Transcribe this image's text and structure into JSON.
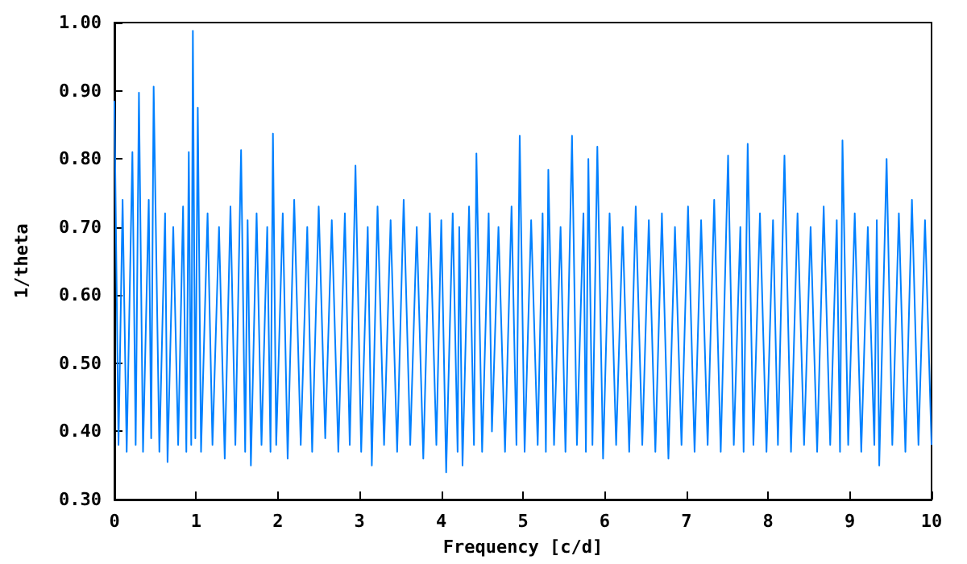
{
  "chart_data": {
    "type": "line",
    "xlabel": "Frequency [c/d]",
    "ylabel": "1/theta",
    "xlim": [
      0,
      10
    ],
    "xticks": [
      0,
      1,
      2,
      3,
      4,
      5,
      6,
      7,
      8,
      9,
      10
    ],
    "ylim": [
      0.3,
      1.0
    ],
    "yticks": [
      {
        "value": 0.3,
        "label": "0.30"
      },
      {
        "value": 0.4,
        "label": "0.40"
      },
      {
        "value": 0.5,
        "label": "0.50"
      },
      {
        "value": 0.6,
        "label": "0.60"
      },
      {
        "value": 0.7,
        "label": "0.70"
      },
      {
        "value": 0.8,
        "label": "0.80"
      },
      {
        "value": 0.9,
        "label": "0.90"
      },
      {
        "value": 1.0,
        "label": "1.00"
      }
    ],
    "grid": false,
    "marker": "none",
    "line_style": "solid",
    "series": [
      {
        "color": "#0080ff",
        "x": [
          0,
          0.05,
          0.1,
          0.15,
          0.22,
          0.26,
          0.3,
          0.35,
          0.42,
          0.45,
          0.48,
          0.55,
          0.62,
          0.65,
          0.72,
          0.78,
          0.84,
          0.88,
          0.91,
          0.94,
          0.96,
          0.99,
          1.02,
          1.06,
          1.14,
          1.2,
          1.28,
          1.35,
          1.42,
          1.48,
          1.55,
          1.6,
          1.63,
          1.67,
          1.74,
          1.8,
          1.87,
          1.91,
          1.94,
          1.98,
          2.06,
          2.12,
          2.2,
          2.28,
          2.36,
          2.42,
          2.5,
          2.58,
          2.66,
          2.74,
          2.82,
          2.88,
          2.95,
          3.02,
          3.1,
          3.15,
          3.22,
          3.3,
          3.38,
          3.46,
          3.54,
          3.62,
          3.7,
          3.78,
          3.86,
          3.94,
          4.0,
          4.06,
          4.14,
          4.2,
          4.22,
          4.26,
          4.34,
          4.4,
          4.43,
          4.5,
          4.58,
          4.62,
          4.7,
          4.78,
          4.86,
          4.92,
          4.96,
          5.02,
          5.1,
          5.18,
          5.24,
          5.28,
          5.31,
          5.38,
          5.46,
          5.52,
          5.6,
          5.66,
          5.74,
          5.77,
          5.8,
          5.85,
          5.91,
          5.98,
          6.06,
          6.14,
          6.22,
          6.3,
          6.38,
          6.46,
          6.54,
          6.62,
          6.7,
          6.78,
          6.86,
          6.94,
          7.02,
          7.1,
          7.18,
          7.26,
          7.34,
          7.42,
          7.51,
          7.58,
          7.66,
          7.7,
          7.75,
          7.82,
          7.9,
          7.98,
          8.06,
          8.12,
          8.2,
          8.28,
          8.36,
          8.44,
          8.52,
          8.6,
          8.68,
          8.76,
          8.84,
          8.88,
          8.91,
          8.98,
          9.06,
          9.14,
          9.22,
          9.3,
          9.33,
          9.36,
          9.45,
          9.52,
          9.6,
          9.68,
          9.76,
          9.84,
          9.92,
          10
        ],
        "values": [
          0.885,
          0.38,
          0.74,
          0.37,
          0.81,
          0.38,
          0.897,
          0.37,
          0.74,
          0.39,
          0.906,
          0.37,
          0.72,
          0.355,
          0.7,
          0.38,
          0.73,
          0.37,
          0.81,
          0.38,
          0.988,
          0.39,
          0.875,
          0.37,
          0.72,
          0.38,
          0.7,
          0.36,
          0.73,
          0.38,
          0.813,
          0.37,
          0.71,
          0.35,
          0.72,
          0.38,
          0.7,
          0.37,
          0.837,
          0.38,
          0.72,
          0.36,
          0.74,
          0.38,
          0.7,
          0.37,
          0.73,
          0.39,
          0.71,
          0.37,
          0.72,
          0.38,
          0.79,
          0.37,
          0.7,
          0.35,
          0.73,
          0.38,
          0.71,
          0.37,
          0.74,
          0.38,
          0.7,
          0.36,
          0.72,
          0.38,
          0.71,
          0.34,
          0.72,
          0.37,
          0.7,
          0.35,
          0.73,
          0.38,
          0.808,
          0.37,
          0.72,
          0.4,
          0.7,
          0.37,
          0.73,
          0.38,
          0.834,
          0.37,
          0.71,
          0.38,
          0.72,
          0.37,
          0.784,
          0.38,
          0.7,
          0.37,
          0.834,
          0.38,
          0.72,
          0.37,
          0.8,
          0.38,
          0.818,
          0.36,
          0.72,
          0.38,
          0.7,
          0.37,
          0.73,
          0.38,
          0.71,
          0.37,
          0.72,
          0.36,
          0.7,
          0.38,
          0.73,
          0.37,
          0.71,
          0.38,
          0.74,
          0.37,
          0.805,
          0.38,
          0.7,
          0.37,
          0.822,
          0.38,
          0.72,
          0.37,
          0.71,
          0.38,
          0.805,
          0.37,
          0.72,
          0.38,
          0.7,
          0.37,
          0.73,
          0.38,
          0.71,
          0.37,
          0.827,
          0.38,
          0.72,
          0.37,
          0.7,
          0.38,
          0.71,
          0.35,
          0.8,
          0.38,
          0.72,
          0.37,
          0.74,
          0.38,
          0.71,
          0.38
        ]
      }
    ]
  }
}
